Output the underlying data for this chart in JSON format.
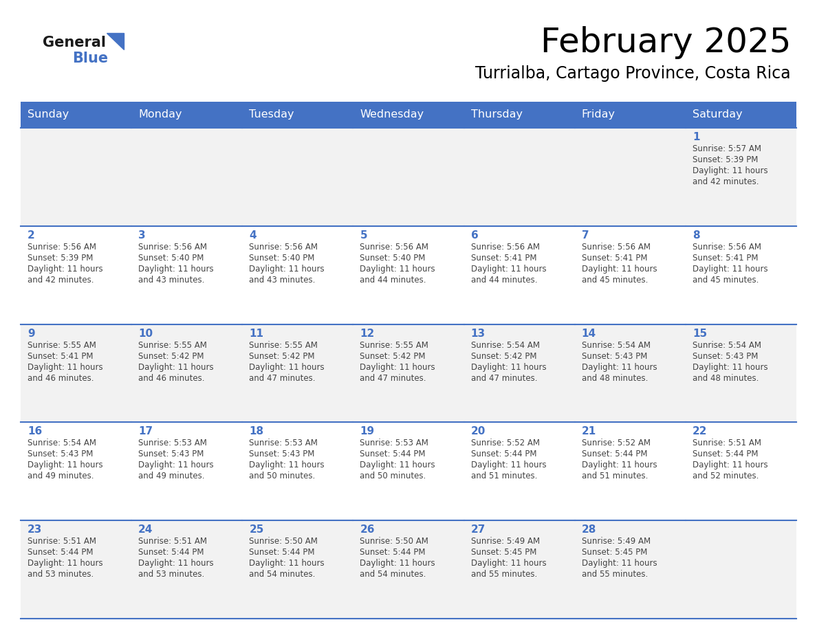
{
  "title": "February 2025",
  "subtitle": "Turrialba, Cartago Province, Costa Rica",
  "header_color": "#4472C4",
  "header_text_color": "#FFFFFF",
  "row_colors": [
    "#F2F2F2",
    "#FFFFFF"
  ],
  "border_color": "#4472C4",
  "day_num_color": "#4472C4",
  "text_color": "#444444",
  "days_of_week": [
    "Sunday",
    "Monday",
    "Tuesday",
    "Wednesday",
    "Thursday",
    "Friday",
    "Saturday"
  ],
  "calendar_data": [
    [
      null,
      null,
      null,
      null,
      null,
      null,
      {
        "day": 1,
        "sunrise": "5:57 AM",
        "sunset": "5:39 PM",
        "daylight_line1": "Daylight: 11 hours",
        "daylight_line2": "and 42 minutes."
      }
    ],
    [
      {
        "day": 2,
        "sunrise": "5:56 AM",
        "sunset": "5:39 PM",
        "daylight_line1": "Daylight: 11 hours",
        "daylight_line2": "and 42 minutes."
      },
      {
        "day": 3,
        "sunrise": "5:56 AM",
        "sunset": "5:40 PM",
        "daylight_line1": "Daylight: 11 hours",
        "daylight_line2": "and 43 minutes."
      },
      {
        "day": 4,
        "sunrise": "5:56 AM",
        "sunset": "5:40 PM",
        "daylight_line1": "Daylight: 11 hours",
        "daylight_line2": "and 43 minutes."
      },
      {
        "day": 5,
        "sunrise": "5:56 AM",
        "sunset": "5:40 PM",
        "daylight_line1": "Daylight: 11 hours",
        "daylight_line2": "and 44 minutes."
      },
      {
        "day": 6,
        "sunrise": "5:56 AM",
        "sunset": "5:41 PM",
        "daylight_line1": "Daylight: 11 hours",
        "daylight_line2": "and 44 minutes."
      },
      {
        "day": 7,
        "sunrise": "5:56 AM",
        "sunset": "5:41 PM",
        "daylight_line1": "Daylight: 11 hours",
        "daylight_line2": "and 45 minutes."
      },
      {
        "day": 8,
        "sunrise": "5:56 AM",
        "sunset": "5:41 PM",
        "daylight_line1": "Daylight: 11 hours",
        "daylight_line2": "and 45 minutes."
      }
    ],
    [
      {
        "day": 9,
        "sunrise": "5:55 AM",
        "sunset": "5:41 PM",
        "daylight_line1": "Daylight: 11 hours",
        "daylight_line2": "and 46 minutes."
      },
      {
        "day": 10,
        "sunrise": "5:55 AM",
        "sunset": "5:42 PM",
        "daylight_line1": "Daylight: 11 hours",
        "daylight_line2": "and 46 minutes."
      },
      {
        "day": 11,
        "sunrise": "5:55 AM",
        "sunset": "5:42 PM",
        "daylight_line1": "Daylight: 11 hours",
        "daylight_line2": "and 47 minutes."
      },
      {
        "day": 12,
        "sunrise": "5:55 AM",
        "sunset": "5:42 PM",
        "daylight_line1": "Daylight: 11 hours",
        "daylight_line2": "and 47 minutes."
      },
      {
        "day": 13,
        "sunrise": "5:54 AM",
        "sunset": "5:42 PM",
        "daylight_line1": "Daylight: 11 hours",
        "daylight_line2": "and 47 minutes."
      },
      {
        "day": 14,
        "sunrise": "5:54 AM",
        "sunset": "5:43 PM",
        "daylight_line1": "Daylight: 11 hours",
        "daylight_line2": "and 48 minutes."
      },
      {
        "day": 15,
        "sunrise": "5:54 AM",
        "sunset": "5:43 PM",
        "daylight_line1": "Daylight: 11 hours",
        "daylight_line2": "and 48 minutes."
      }
    ],
    [
      {
        "day": 16,
        "sunrise": "5:54 AM",
        "sunset": "5:43 PM",
        "daylight_line1": "Daylight: 11 hours",
        "daylight_line2": "and 49 minutes."
      },
      {
        "day": 17,
        "sunrise": "5:53 AM",
        "sunset": "5:43 PM",
        "daylight_line1": "Daylight: 11 hours",
        "daylight_line2": "and 49 minutes."
      },
      {
        "day": 18,
        "sunrise": "5:53 AM",
        "sunset": "5:43 PM",
        "daylight_line1": "Daylight: 11 hours",
        "daylight_line2": "and 50 minutes."
      },
      {
        "day": 19,
        "sunrise": "5:53 AM",
        "sunset": "5:44 PM",
        "daylight_line1": "Daylight: 11 hours",
        "daylight_line2": "and 50 minutes."
      },
      {
        "day": 20,
        "sunrise": "5:52 AM",
        "sunset": "5:44 PM",
        "daylight_line1": "Daylight: 11 hours",
        "daylight_line2": "and 51 minutes."
      },
      {
        "day": 21,
        "sunrise": "5:52 AM",
        "sunset": "5:44 PM",
        "daylight_line1": "Daylight: 11 hours",
        "daylight_line2": "and 51 minutes."
      },
      {
        "day": 22,
        "sunrise": "5:51 AM",
        "sunset": "5:44 PM",
        "daylight_line1": "Daylight: 11 hours",
        "daylight_line2": "and 52 minutes."
      }
    ],
    [
      {
        "day": 23,
        "sunrise": "5:51 AM",
        "sunset": "5:44 PM",
        "daylight_line1": "Daylight: 11 hours",
        "daylight_line2": "and 53 minutes."
      },
      {
        "day": 24,
        "sunrise": "5:51 AM",
        "sunset": "5:44 PM",
        "daylight_line1": "Daylight: 11 hours",
        "daylight_line2": "and 53 minutes."
      },
      {
        "day": 25,
        "sunrise": "5:50 AM",
        "sunset": "5:44 PM",
        "daylight_line1": "Daylight: 11 hours",
        "daylight_line2": "and 54 minutes."
      },
      {
        "day": 26,
        "sunrise": "5:50 AM",
        "sunset": "5:44 PM",
        "daylight_line1": "Daylight: 11 hours",
        "daylight_line2": "and 54 minutes."
      },
      {
        "day": 27,
        "sunrise": "5:49 AM",
        "sunset": "5:45 PM",
        "daylight_line1": "Daylight: 11 hours",
        "daylight_line2": "and 55 minutes."
      },
      {
        "day": 28,
        "sunrise": "5:49 AM",
        "sunset": "5:45 PM",
        "daylight_line1": "Daylight: 11 hours",
        "daylight_line2": "and 55 minutes."
      },
      null
    ]
  ]
}
